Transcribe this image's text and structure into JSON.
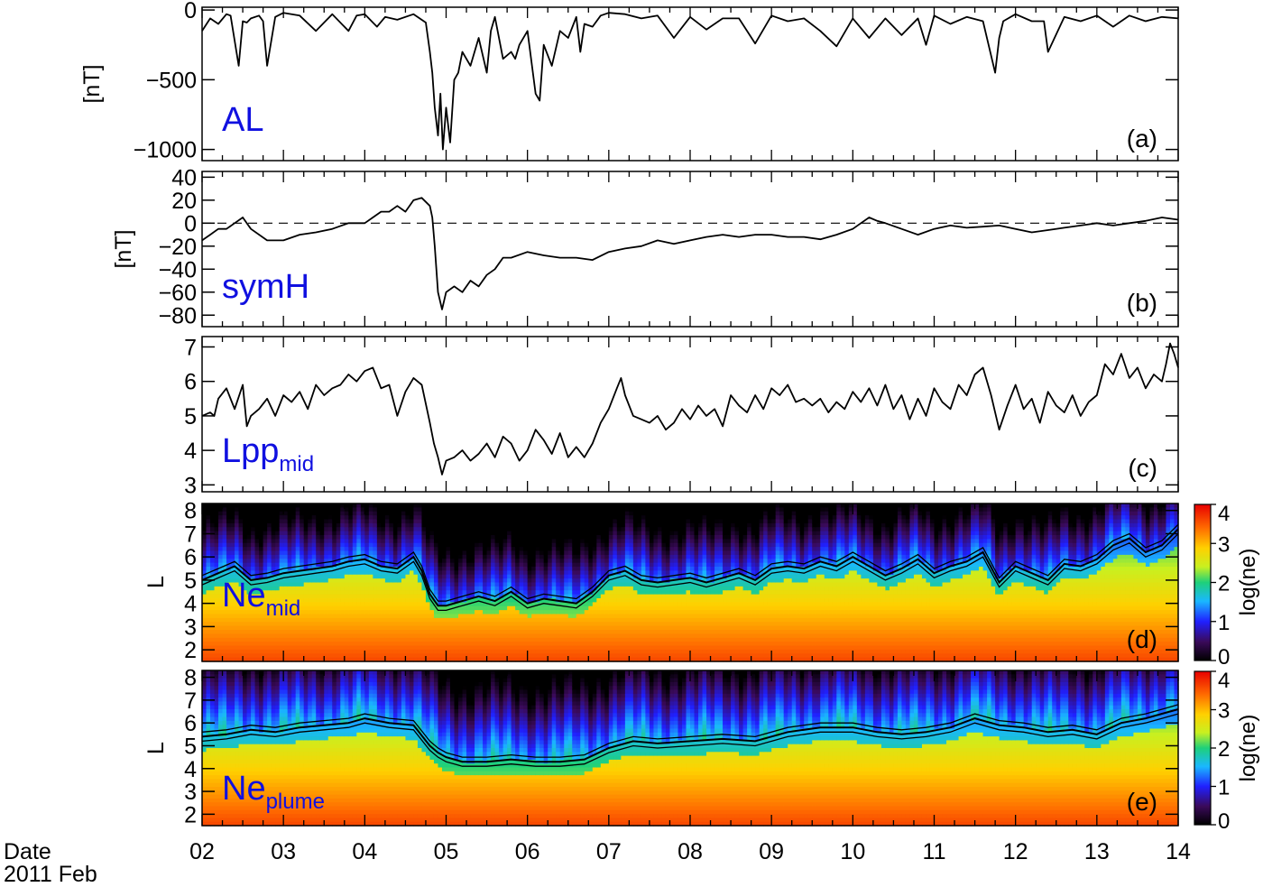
{
  "date_caption": {
    "line1": "Date",
    "line2": "2011 Feb"
  },
  "x_axis": {
    "range": [
      2,
      14
    ],
    "tick_labels": [
      "02",
      "03",
      "04",
      "05",
      "06",
      "07",
      "08",
      "09",
      "10",
      "11",
      "12",
      "13",
      "14"
    ]
  },
  "colorbar": {
    "label": "log(ne)",
    "range": [
      0,
      4
    ],
    "tick_labels": [
      "0",
      "1",
      "2",
      "3",
      "4"
    ]
  },
  "colors": {
    "label_blue": "#1010e0",
    "axes": "#000000",
    "trace": "#000000"
  },
  "chart_data": [
    {
      "type": "line",
      "panel_label": "(a)",
      "name_label": "AL",
      "ylabel": "[nT]",
      "ylim": [
        -1080,
        20
      ],
      "yticks": [
        0,
        -500,
        -1000
      ],
      "ytick_labels": [
        "0",
        "−500",
        "−1000"
      ],
      "series": [
        {
          "x": [
            2.0,
            2.1,
            2.2,
            2.3,
            2.35,
            2.45,
            2.5,
            2.55,
            2.6,
            2.7,
            2.75,
            2.8,
            2.9,
            3.0,
            3.2,
            3.4,
            3.6,
            3.8,
            3.9,
            4.0,
            4.15,
            4.25,
            4.4,
            4.6,
            4.75,
            4.8,
            4.83,
            4.86,
            4.9,
            4.93,
            4.96,
            5.0,
            5.05,
            5.1,
            5.15,
            5.2,
            5.3,
            5.4,
            5.5,
            5.55,
            5.6,
            5.7,
            5.8,
            5.85,
            5.9,
            6.0,
            6.1,
            6.15,
            6.2,
            6.3,
            6.4,
            6.5,
            6.6,
            6.65,
            6.7,
            6.8,
            6.9,
            7.0,
            7.2,
            7.4,
            7.6,
            7.8,
            8.0,
            8.2,
            8.4,
            8.6,
            8.8,
            9.0,
            9.2,
            9.4,
            9.6,
            9.8,
            10.0,
            10.2,
            10.4,
            10.6,
            10.8,
            10.9,
            11.0,
            11.2,
            11.4,
            11.6,
            11.75,
            11.8,
            11.85,
            12.0,
            12.2,
            12.35,
            12.4,
            12.6,
            12.8,
            13.0,
            13.2,
            13.4,
            13.6,
            13.8,
            14.0
          ],
          "y": [
            -150,
            -60,
            -100,
            -30,
            -40,
            -400,
            -80,
            -90,
            -60,
            -40,
            -80,
            -400,
            -50,
            -20,
            -40,
            -150,
            -30,
            -150,
            -40,
            -30,
            -120,
            -50,
            -70,
            -30,
            -90,
            -300,
            -450,
            -700,
            -900,
            -600,
            -1000,
            -700,
            -950,
            -500,
            -450,
            -300,
            -400,
            -200,
            -450,
            -150,
            -50,
            -350,
            -300,
            -350,
            -250,
            -150,
            -600,
            -650,
            -250,
            -400,
            -150,
            -200,
            -50,
            -300,
            -100,
            -120,
            -40,
            -20,
            -30,
            -60,
            -40,
            -200,
            -50,
            -140,
            -60,
            -60,
            -240,
            -40,
            -80,
            -60,
            -150,
            -260,
            -60,
            -200,
            -60,
            -180,
            -60,
            -250,
            -40,
            -100,
            -50,
            -80,
            -450,
            -200,
            -80,
            -30,
            -80,
            -80,
            -300,
            -50,
            -80,
            -40,
            -120,
            -40,
            -80,
            -50,
            -60
          ]
        }
      ]
    },
    {
      "type": "line",
      "panel_label": "(b)",
      "name_label": "symH",
      "ylabel": "[nT]",
      "ylim": [
        -90,
        45
      ],
      "yticks": [
        40,
        20,
        0,
        -20,
        -40,
        -60,
        -80
      ],
      "ytick_labels": [
        "40",
        "20",
        "0",
        "−20",
        "−40",
        "−60",
        "−80"
      ],
      "reference_line": 0,
      "series": [
        {
          "x": [
            2.0,
            2.1,
            2.2,
            2.3,
            2.4,
            2.5,
            2.6,
            2.8,
            3.0,
            3.2,
            3.4,
            3.6,
            3.8,
            4.0,
            4.1,
            4.2,
            4.3,
            4.4,
            4.5,
            4.6,
            4.7,
            4.8,
            4.83,
            4.86,
            4.9,
            4.95,
            5.0,
            5.1,
            5.2,
            5.3,
            5.4,
            5.5,
            5.6,
            5.7,
            5.8,
            6.0,
            6.2,
            6.4,
            6.6,
            6.8,
            7.0,
            7.2,
            7.4,
            7.6,
            7.8,
            8.0,
            8.2,
            8.4,
            8.6,
            8.8,
            9.0,
            9.2,
            9.4,
            9.6,
            9.8,
            10.0,
            10.1,
            10.2,
            10.3,
            10.4,
            10.6,
            10.8,
            11.0,
            11.2,
            11.4,
            11.6,
            11.8,
            12.0,
            12.2,
            12.4,
            12.6,
            12.8,
            13.0,
            13.2,
            13.4,
            13.6,
            13.8,
            14.0
          ],
          "y": [
            -15,
            -10,
            -5,
            -5,
            0,
            5,
            -5,
            -15,
            -15,
            -10,
            -8,
            -5,
            0,
            0,
            5,
            10,
            10,
            15,
            10,
            20,
            22,
            15,
            5,
            -20,
            -60,
            -75,
            -60,
            -55,
            -60,
            -50,
            -55,
            -45,
            -40,
            -30,
            -30,
            -25,
            -28,
            -30,
            -30,
            -32,
            -25,
            -22,
            -20,
            -15,
            -18,
            -15,
            -12,
            -10,
            -12,
            -10,
            -10,
            -12,
            -12,
            -14,
            -10,
            -5,
            0,
            5,
            2,
            0,
            -5,
            -10,
            -5,
            -2,
            -4,
            -3,
            -2,
            -5,
            -8,
            -6,
            -4,
            -2,
            0,
            -2,
            0,
            2,
            5,
            3
          ]
        }
      ]
    },
    {
      "type": "line",
      "panel_label": "(c)",
      "name_label": "Lpp",
      "name_sub": "mid",
      "ylabel": "",
      "ylim": [
        2.8,
        7.3
      ],
      "yticks": [
        3,
        4,
        5,
        6,
        7
      ],
      "ytick_labels": [
        "3",
        "4",
        "5",
        "6",
        "7"
      ],
      "series": [
        {
          "x": [
            2.0,
            2.1,
            2.15,
            2.2,
            2.3,
            2.4,
            2.5,
            2.55,
            2.6,
            2.7,
            2.8,
            2.9,
            3.0,
            3.1,
            3.2,
            3.3,
            3.4,
            3.5,
            3.6,
            3.7,
            3.8,
            3.9,
            4.0,
            4.1,
            4.2,
            4.3,
            4.4,
            4.5,
            4.6,
            4.7,
            4.8,
            4.85,
            4.9,
            4.95,
            5.0,
            5.1,
            5.2,
            5.3,
            5.4,
            5.5,
            5.6,
            5.7,
            5.8,
            5.9,
            6.0,
            6.1,
            6.2,
            6.3,
            6.4,
            6.5,
            6.6,
            6.7,
            6.8,
            6.9,
            7.0,
            7.1,
            7.15,
            7.2,
            7.3,
            7.4,
            7.5,
            7.6,
            7.7,
            7.8,
            7.9,
            8.0,
            8.1,
            8.2,
            8.3,
            8.4,
            8.5,
            8.6,
            8.7,
            8.8,
            8.9,
            9.0,
            9.1,
            9.2,
            9.3,
            9.4,
            9.5,
            9.6,
            9.7,
            9.8,
            9.9,
            10.0,
            10.1,
            10.2,
            10.3,
            10.4,
            10.5,
            10.6,
            10.7,
            10.8,
            10.9,
            11.0,
            11.1,
            11.2,
            11.3,
            11.4,
            11.5,
            11.6,
            11.7,
            11.8,
            11.9,
            12.0,
            12.1,
            12.2,
            12.3,
            12.4,
            12.5,
            12.6,
            12.7,
            12.8,
            12.9,
            13.0,
            13.1,
            13.2,
            13.3,
            13.4,
            13.5,
            13.6,
            13.7,
            13.8,
            13.85,
            13.9,
            13.95,
            14.0
          ],
          "y": [
            5.0,
            5.1,
            5.0,
            5.5,
            5.8,
            5.2,
            5.9,
            4.7,
            5.0,
            5.2,
            5.5,
            5.0,
            5.6,
            5.4,
            5.7,
            5.2,
            5.9,
            5.6,
            5.8,
            5.9,
            6.2,
            6.0,
            6.3,
            6.4,
            5.8,
            5.9,
            5.0,
            5.7,
            6.1,
            5.9,
            4.8,
            4.2,
            3.8,
            3.3,
            3.7,
            3.8,
            4.0,
            3.7,
            3.9,
            4.2,
            3.8,
            4.4,
            4.2,
            3.7,
            4.0,
            4.6,
            4.3,
            3.9,
            4.5,
            3.8,
            4.1,
            3.8,
            4.2,
            4.8,
            5.2,
            5.8,
            6.1,
            5.6,
            5.0,
            4.9,
            4.8,
            5.0,
            4.6,
            4.8,
            5.2,
            4.9,
            5.3,
            5.0,
            5.2,
            4.7,
            5.6,
            5.3,
            5.1,
            5.6,
            5.2,
            5.8,
            5.6,
            5.9,
            5.4,
            5.5,
            5.3,
            5.5,
            5.1,
            5.4,
            5.2,
            5.7,
            5.4,
            5.8,
            5.3,
            5.9,
            5.2,
            5.6,
            4.9,
            5.5,
            5.0,
            5.8,
            5.4,
            5.2,
            5.9,
            5.6,
            6.2,
            6.4,
            5.6,
            4.6,
            5.3,
            5.9,
            5.2,
            5.5,
            4.8,
            5.7,
            5.3,
            5.1,
            5.6,
            5.0,
            5.4,
            5.6,
            6.5,
            6.2,
            6.8,
            6.1,
            6.4,
            5.8,
            6.2,
            6.0,
            6.5,
            7.1,
            6.8,
            6.4
          ]
        }
      ]
    },
    {
      "type": "heatmap",
      "panel_label": "(d)",
      "name_label": "Ne",
      "name_sub": "mid",
      "ylabel": "L",
      "ylim": [
        1.5,
        8.3
      ],
      "yticks": [
        2,
        3,
        4,
        5,
        6,
        7,
        8
      ],
      "ytick_labels": [
        "2",
        "3",
        "4",
        "5",
        "6",
        "7",
        "8"
      ],
      "value_range": [
        0,
        4
      ],
      "plasmapause_trace": {
        "x": [
          2.0,
          2.2,
          2.4,
          2.6,
          2.8,
          3.0,
          3.2,
          3.4,
          3.6,
          3.8,
          4.0,
          4.2,
          4.4,
          4.6,
          4.7,
          4.8,
          4.9,
          5.0,
          5.2,
          5.4,
          5.6,
          5.8,
          6.0,
          6.2,
          6.4,
          6.6,
          6.8,
          7.0,
          7.2,
          7.4,
          7.6,
          7.8,
          8.0,
          8.2,
          8.4,
          8.6,
          8.8,
          9.0,
          9.2,
          9.4,
          9.6,
          9.8,
          10.0,
          10.2,
          10.4,
          10.6,
          10.8,
          11.0,
          11.2,
          11.4,
          11.6,
          11.8,
          12.0,
          12.2,
          12.4,
          12.6,
          12.8,
          13.0,
          13.2,
          13.4,
          13.6,
          13.8,
          14.0
        ],
        "y": [
          5.0,
          5.3,
          5.6,
          5.0,
          5.1,
          5.3,
          5.4,
          5.5,
          5.6,
          5.8,
          5.9,
          5.6,
          5.5,
          6.0,
          5.4,
          4.4,
          3.9,
          3.9,
          4.1,
          4.3,
          4.1,
          4.5,
          4.0,
          4.2,
          4.1,
          4.0,
          4.5,
          5.2,
          5.4,
          5.0,
          4.9,
          5.0,
          5.1,
          4.9,
          5.1,
          5.3,
          5.0,
          5.5,
          5.6,
          5.5,
          5.8,
          5.6,
          6.0,
          5.6,
          5.2,
          5.5,
          5.9,
          5.3,
          5.6,
          5.8,
          6.2,
          4.9,
          5.6,
          5.3,
          5.0,
          5.7,
          5.6,
          5.9,
          6.5,
          6.8,
          6.2,
          6.5,
          7.2
        ]
      }
    },
    {
      "type": "heatmap",
      "panel_label": "(e)",
      "name_label": "Ne",
      "name_sub": "plume",
      "ylabel": "L",
      "ylim": [
        1.5,
        8.3
      ],
      "yticks": [
        2,
        3,
        4,
        5,
        6,
        7,
        8
      ],
      "ytick_labels": [
        "2",
        "3",
        "4",
        "5",
        "6",
        "7",
        "8"
      ],
      "value_range": [
        0,
        4
      ],
      "plasmapause_trace": {
        "x": [
          2.0,
          2.3,
          2.6,
          2.9,
          3.2,
          3.5,
          3.8,
          4.0,
          4.3,
          4.6,
          4.8,
          4.9,
          5.0,
          5.2,
          5.5,
          5.8,
          6.1,
          6.4,
          6.7,
          7.0,
          7.3,
          7.6,
          8.0,
          8.4,
          8.8,
          9.2,
          9.6,
          10.0,
          10.3,
          10.6,
          10.9,
          11.2,
          11.5,
          11.8,
          12.1,
          12.4,
          12.7,
          13.0,
          13.3,
          13.6,
          13.9,
          14.0
        ],
        "y": [
          5.4,
          5.5,
          5.7,
          5.6,
          5.8,
          5.9,
          6.0,
          6.2,
          6.0,
          5.9,
          5.0,
          4.7,
          4.5,
          4.3,
          4.3,
          4.4,
          4.3,
          4.3,
          4.4,
          4.9,
          5.2,
          5.1,
          5.2,
          5.3,
          5.2,
          5.6,
          5.8,
          5.8,
          5.6,
          5.5,
          5.6,
          5.8,
          6.2,
          5.9,
          5.8,
          5.6,
          5.7,
          5.5,
          6.0,
          6.2,
          6.5,
          6.6
        ]
      }
    }
  ]
}
